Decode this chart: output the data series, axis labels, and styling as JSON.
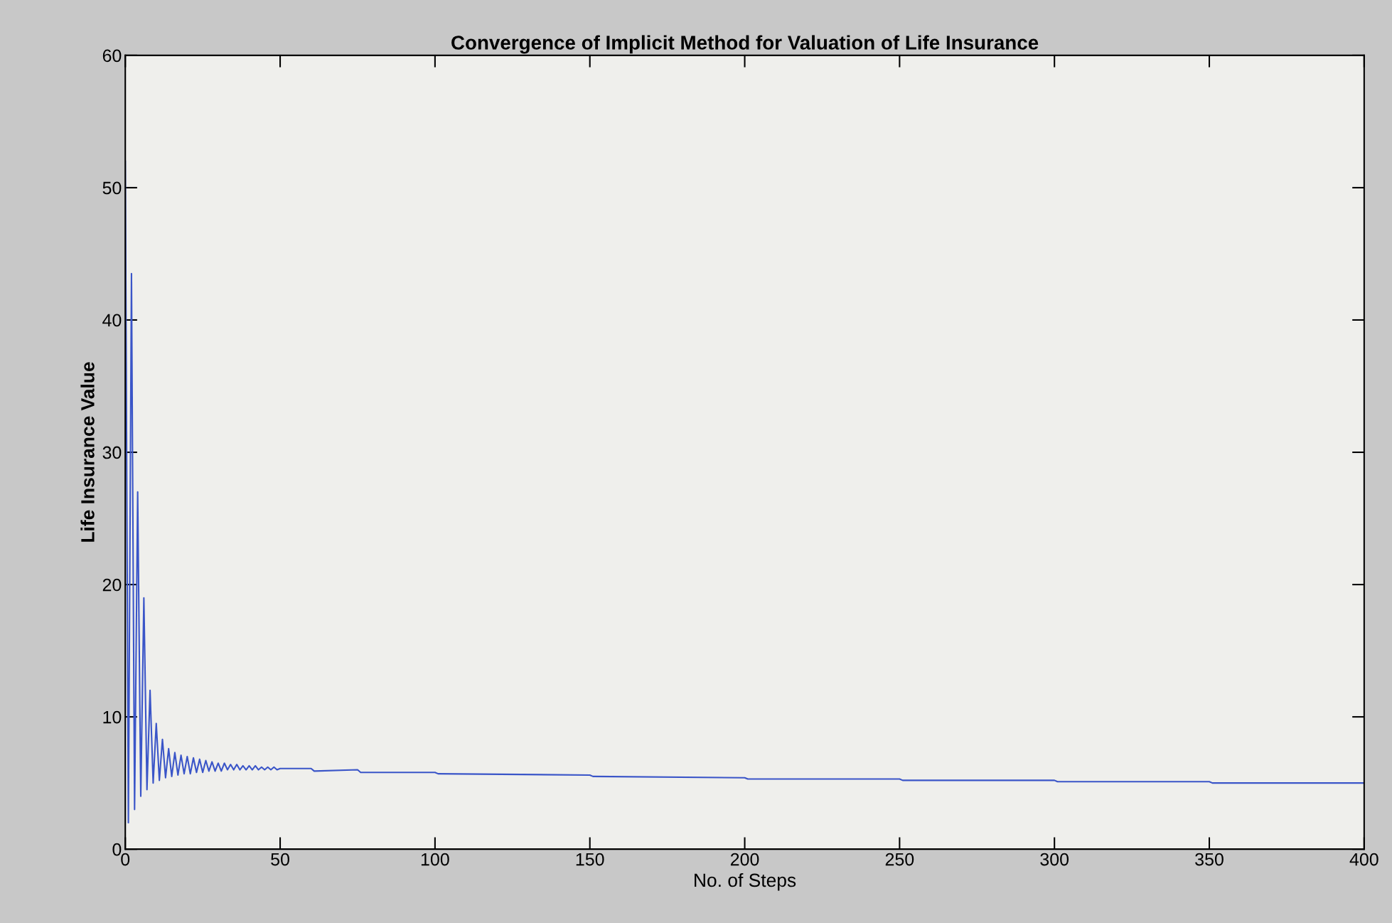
{
  "chart_data": {
    "type": "line",
    "title": "Convergence of Implicit Method for Valuation of Life Insurance",
    "xlabel": "No. of Steps",
    "ylabel": "Life Insurance Value",
    "series": [
      {
        "color": "#3a55c8",
        "x": [
          0,
          1,
          2,
          3,
          4,
          5,
          6,
          7,
          8,
          9,
          10,
          11,
          12,
          13,
          14,
          15,
          16,
          17,
          18,
          19,
          20,
          21,
          22,
          23,
          24,
          25,
          26,
          27,
          28,
          29,
          30,
          31,
          32,
          33,
          34,
          35,
          36,
          37,
          38,
          39,
          40,
          41,
          42,
          43,
          44,
          45,
          46,
          47,
          48,
          49,
          50,
          60,
          61,
          75,
          76,
          100,
          101,
          150,
          151,
          200,
          201,
          250,
          251,
          300,
          301,
          350,
          351,
          400
        ],
        "values": [
          52,
          2,
          43.5,
          3,
          27,
          4,
          19,
          4.5,
          12,
          5,
          9.5,
          5.2,
          8.3,
          5.4,
          7.6,
          5.5,
          7.3,
          5.6,
          7.1,
          5.7,
          7.0,
          5.7,
          6.9,
          5.8,
          6.8,
          5.8,
          6.7,
          5.9,
          6.6,
          5.9,
          6.5,
          5.9,
          6.5,
          6.0,
          6.4,
          6.0,
          6.4,
          6.0,
          6.3,
          6.0,
          6.3,
          6.0,
          6.3,
          6.0,
          6.2,
          6.0,
          6.2,
          6.0,
          6.2,
          6.0,
          6.1,
          6.1,
          5.9,
          6.0,
          5.8,
          5.8,
          5.7,
          5.6,
          5.5,
          5.4,
          5.3,
          5.3,
          5.2,
          5.2,
          5.1,
          5.1,
          5.0,
          5.0
        ]
      }
    ],
    "xlim": [
      0,
      400
    ],
    "ylim": [
      0,
      60
    ],
    "xticks": [
      0,
      50,
      100,
      150,
      200,
      250,
      300,
      350,
      400
    ],
    "yticks": [
      0,
      10,
      20,
      30,
      40,
      50,
      60
    ],
    "grid": false,
    "legend": false,
    "marker": "none",
    "line_style": "solid"
  }
}
